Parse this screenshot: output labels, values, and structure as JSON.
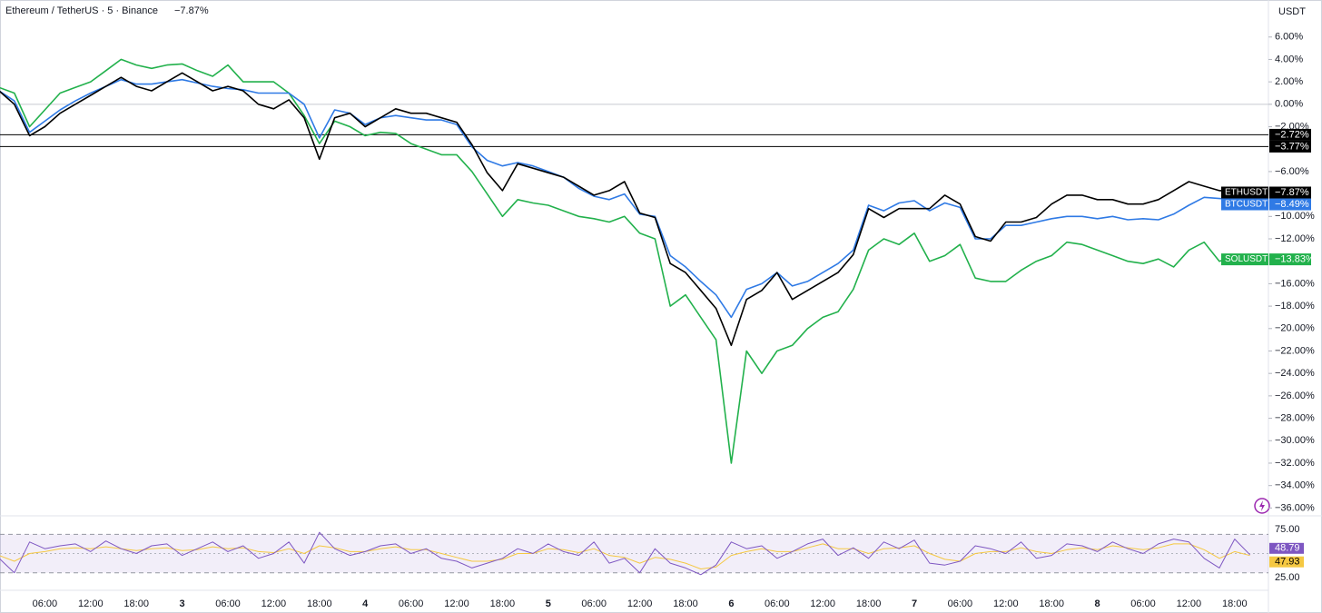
{
  "header": {
    "symbol": "Ethereum / TetherUS · 5 · Binance",
    "change": "−7.87%",
    "currency": "USDT"
  },
  "chart_data": {
    "type": "line",
    "categories": [
      null,
      null,
      null,
      "06:00",
      null,
      null,
      "12:00",
      null,
      null,
      "18:00",
      null,
      null,
      "3",
      null,
      null,
      "06:00",
      null,
      null,
      "12:00",
      null,
      null,
      "18:00",
      null,
      null,
      "4",
      null,
      null,
      "06:00",
      null,
      null,
      "12:00",
      null,
      null,
      "18:00",
      null,
      null,
      "5",
      null,
      null,
      "06:00",
      null,
      null,
      "12:00",
      null,
      null,
      "18:00",
      null,
      null,
      "6",
      null,
      null,
      "06:00",
      null,
      null,
      "12:00",
      null,
      null,
      "18:00",
      null,
      null,
      "7",
      null,
      null,
      "06:00",
      null,
      null,
      "12:00",
      null,
      null,
      "18:00",
      null,
      null,
      "8",
      null,
      null,
      "06:00",
      null,
      null,
      "12:00",
      null,
      null,
      "18:00",
      null
    ],
    "series": [
      {
        "name": "SOLUSDT",
        "color": "#22b14c",
        "last_label": "−13.83%",
        "values": [
          1.5,
          1.0,
          -2.0,
          -0.5,
          1.0,
          1.5,
          2.0,
          3.0,
          4.0,
          3.5,
          3.2,
          3.5,
          3.6,
          3.0,
          2.5,
          3.5,
          2.0,
          2.0,
          2.0,
          1.0,
          -1.0,
          -3.5,
          -1.5,
          -2.0,
          -2.8,
          -2.5,
          -2.6,
          -3.5,
          -4.0,
          -4.5,
          -4.5,
          -6.0,
          -8.0,
          -10.0,
          -8.5,
          -8.8,
          -9.0,
          -9.5,
          -10.0,
          -10.2,
          -10.5,
          -10.0,
          -11.5,
          -12.0,
          -18.0,
          -17.0,
          -19.0,
          -21.0,
          -32.0,
          -22.0,
          -24.0,
          -22.0,
          -21.5,
          -20.0,
          -19.0,
          -18.5,
          -16.5,
          -13.0,
          -12.0,
          -12.5,
          -11.5,
          -14.0,
          -13.5,
          -12.5,
          -15.5,
          -15.8,
          -15.8,
          -14.8,
          -14.0,
          -13.5,
          -12.3,
          -12.5,
          -13.0,
          -13.5,
          -14.0,
          -14.2,
          -13.8,
          -14.5,
          -13.0,
          -12.3,
          -14.0,
          -13.5,
          -13.83
        ]
      },
      {
        "name": "BTCUSDT",
        "color": "#2f7ae5",
        "last_label": "−8.49%",
        "values": [
          1.2,
          0.3,
          -2.5,
          -1.5,
          -0.5,
          0.3,
          1.0,
          1.6,
          2.2,
          1.8,
          1.8,
          2.0,
          2.2,
          1.9,
          1.6,
          1.4,
          1.3,
          1.0,
          1.0,
          1.0,
          0.0,
          -3.0,
          -0.5,
          -0.8,
          -1.8,
          -1.2,
          -1.0,
          -1.2,
          -1.4,
          -1.4,
          -1.8,
          -3.8,
          -5.0,
          -5.5,
          -5.2,
          -5.5,
          -6.0,
          -6.5,
          -7.5,
          -8.2,
          -8.5,
          -8.0,
          -9.8,
          -10.0,
          -13.5,
          -14.5,
          -15.8,
          -17.0,
          -19.0,
          -16.5,
          -16.0,
          -15.0,
          -16.2,
          -15.8,
          -15.0,
          -14.2,
          -13.0,
          -9.0,
          -9.5,
          -8.8,
          -8.6,
          -9.5,
          -8.8,
          -9.2,
          -12.0,
          -12.0,
          -10.8,
          -10.8,
          -10.5,
          -10.2,
          -10.0,
          -10.0,
          -10.2,
          -10.0,
          -10.3,
          -10.2,
          -10.3,
          -9.8,
          -9.0,
          -8.3,
          -8.4,
          -8.5,
          -8.49
        ]
      },
      {
        "name": "ETHUSDT",
        "color": "#000000",
        "last_label": "−7.87%",
        "values": [
          1.2,
          0,
          -2.8,
          -2.0,
          -0.8,
          0,
          0.8,
          1.6,
          2.4,
          1.6,
          1.2,
          2.0,
          2.8,
          2.0,
          1.2,
          1.6,
          1.2,
          0,
          -0.4,
          0.4,
          -1.2,
          -4.9,
          -1.2,
          -0.8,
          -2.0,
          -1.2,
          -0.4,
          -0.8,
          -0.8,
          -1.2,
          -1.6,
          -3.6,
          -6.1,
          -7.7,
          -5.3,
          -5.7,
          -6.1,
          -6.5,
          -7.3,
          -8.1,
          -7.7,
          -6.9,
          -9.7,
          -10.1,
          -14.2,
          -15.0,
          -16.6,
          -18.2,
          -21.5,
          -17.4,
          -16.6,
          -15.0,
          -17.4,
          -16.6,
          -15.8,
          -15.0,
          -13.4,
          -9.3,
          -10.1,
          -9.3,
          -9.3,
          -9.3,
          -8.1,
          -8.9,
          -11.8,
          -12.2,
          -10.5,
          -10.5,
          -10.1,
          -8.9,
          -8.1,
          -8.1,
          -8.5,
          -8.5,
          -8.9,
          -8.9,
          -8.5,
          -7.7,
          -6.9,
          -7.3,
          -7.7,
          -7.7,
          -7.87
        ]
      }
    ],
    "ylim": [
      -36.7,
      9.3
    ],
    "yticks": [
      {
        "value": 6,
        "label": "6.00%"
      },
      {
        "value": 4,
        "label": "4.00%"
      },
      {
        "value": 2,
        "label": "2.00%"
      },
      {
        "value": 0,
        "label": "0.00%"
      },
      {
        "value": -2,
        "label": "−2.00%"
      },
      {
        "value": -6,
        "label": "−6.00%"
      },
      {
        "value": -10,
        "label": "−10.00%"
      },
      {
        "value": -12,
        "label": "−12.00%"
      },
      {
        "value": -16,
        "label": "−16.00%"
      },
      {
        "value": -18,
        "label": "−18.00%"
      },
      {
        "value": -20,
        "label": "−20.00%"
      },
      {
        "value": -22,
        "label": "−22.00%"
      },
      {
        "value": -24,
        "label": "−24.00%"
      },
      {
        "value": -26,
        "label": "−26.00%"
      },
      {
        "value": -28,
        "label": "−28.00%"
      },
      {
        "value": -30,
        "label": "−30.00%"
      },
      {
        "value": -32,
        "label": "−32.00%"
      },
      {
        "value": -34,
        "label": "−34.00%"
      },
      {
        "value": -36,
        "label": "−36.00%"
      }
    ],
    "zero_line": true,
    "hlines": [
      {
        "value": -2.72,
        "label": "−2.72%"
      },
      {
        "value": -3.77,
        "label": "−3.77%"
      }
    ],
    "rsi": {
      "ylim": [
        11.8,
        87.3
      ],
      "yticks": [
        {
          "value": 75,
          "label": "75.00"
        },
        {
          "value": 25,
          "label": "25.00"
        }
      ],
      "bands": [
        30,
        70
      ],
      "midline": 50,
      "series": [
        {
          "color": "#7e57c2",
          "last_label": "48.79",
          "values": [
            45,
            30,
            62,
            55,
            58,
            60,
            52,
            63,
            55,
            50,
            58,
            60,
            48,
            55,
            62,
            52,
            58,
            45,
            50,
            62,
            40,
            72,
            55,
            48,
            52,
            58,
            60,
            50,
            55,
            45,
            42,
            35,
            40,
            45,
            55,
            50,
            60,
            52,
            48,
            62,
            40,
            45,
            30,
            55,
            40,
            35,
            28,
            38,
            62,
            55,
            58,
            45,
            52,
            60,
            65,
            48,
            56,
            45,
            62,
            55,
            64,
            40,
            38,
            42,
            58,
            55,
            50,
            62,
            45,
            48,
            60,
            58,
            52,
            62,
            55,
            50,
            60,
            65,
            62,
            45,
            35,
            65,
            48.79
          ]
        },
        {
          "color": "#f5c842",
          "last_label": "47.93",
          "values": [
            48,
            42,
            50,
            52,
            55,
            56,
            55,
            57,
            55,
            53,
            55,
            56,
            53,
            54,
            57,
            55,
            56,
            52,
            51,
            55,
            50,
            58,
            56,
            52,
            52,
            55,
            57,
            54,
            54,
            50,
            46,
            42,
            42,
            44,
            50,
            50,
            55,
            54,
            51,
            55,
            48,
            46,
            40,
            46,
            44,
            40,
            34,
            36,
            48,
            52,
            55,
            52,
            52,
            56,
            60,
            55,
            55,
            50,
            55,
            56,
            58,
            50,
            44,
            42,
            50,
            52,
            52,
            56,
            52,
            50,
            54,
            56,
            54,
            58,
            56,
            54,
            56,
            60,
            60,
            54,
            45,
            52,
            47.93
          ]
        }
      ]
    }
  }
}
